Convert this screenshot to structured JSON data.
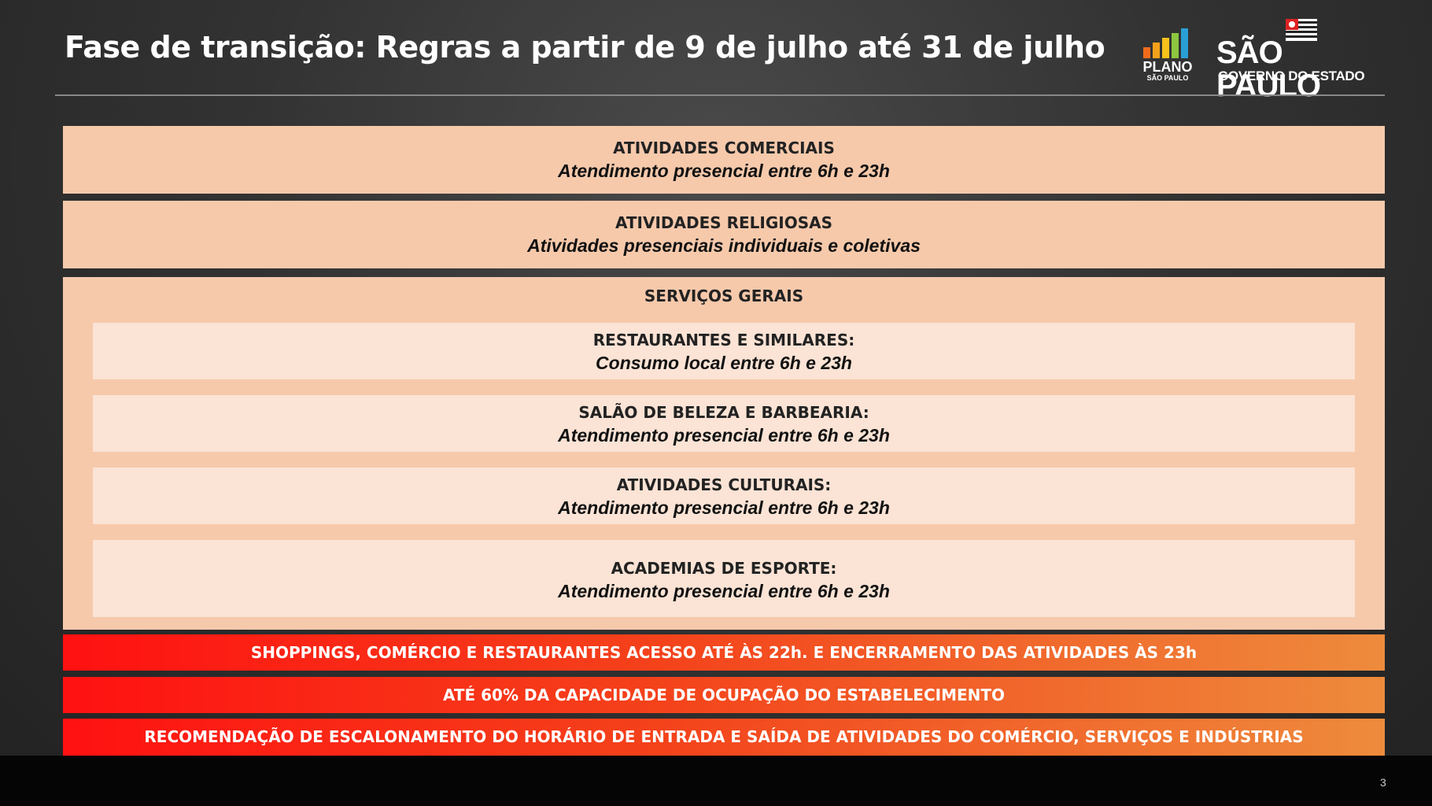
{
  "title": "Fase de transição: Regras a partir de 9 de julho até 31 de julho",
  "logos": {
    "plano": {
      "line1": "PLANO",
      "line2": "SÃO PAULO"
    },
    "sp": {
      "main": "SÃO PAULO",
      "sub": "GOVERNO DO ESTADO"
    }
  },
  "sections": {
    "comerciais": {
      "heading": "ATIVIDADES COMERCIAIS",
      "detail": "Atendimento presencial entre 6h e 23h"
    },
    "religiosas": {
      "heading": "ATIVIDADES RELIGIOSAS",
      "detail": "Atividades presenciais individuais e coletivas"
    },
    "servicos": {
      "heading": "SERVIÇOS GERAIS",
      "items": [
        {
          "heading": "RESTAURANTES E SIMILARES:",
          "detail": "Consumo local entre 6h e 23h"
        },
        {
          "heading": "SALÃO DE BELEZA E BARBEARIA:",
          "detail": "Atendimento presencial entre 6h e 23h"
        },
        {
          "heading": "ATIVIDADES CULTURAIS:",
          "detail": "Atendimento presencial entre 6h e 23h"
        },
        {
          "heading": "ACADEMIAS DE ESPORTE:",
          "detail": "Atendimento presencial entre 6h e 23h"
        }
      ]
    }
  },
  "bars": [
    "SHOPPINGS, COMÉRCIO E RESTAURANTES ACESSO ATÉ ÀS 22h. E ENCERRAMENTO DAS ATIVIDADES ÀS 23h",
    "ATÉ 60% DA CAPACIDADE DE OCUPAÇÃO DO ESTABELECIMENTO",
    "RECOMENDAÇÃO DE ESCALONAMENTO DO HORÁRIO DE ENTRADA E SAÍDA DE ATIVIDADES DO COMÉRCIO, SERVIÇOS E INDÚSTRIAS"
  ],
  "page_number": "3",
  "colors": {
    "box": "#f6c9ab",
    "inner": "#fbe3d5",
    "bar_start": "#ff1111",
    "bar_end": "#ee8b3c"
  }
}
